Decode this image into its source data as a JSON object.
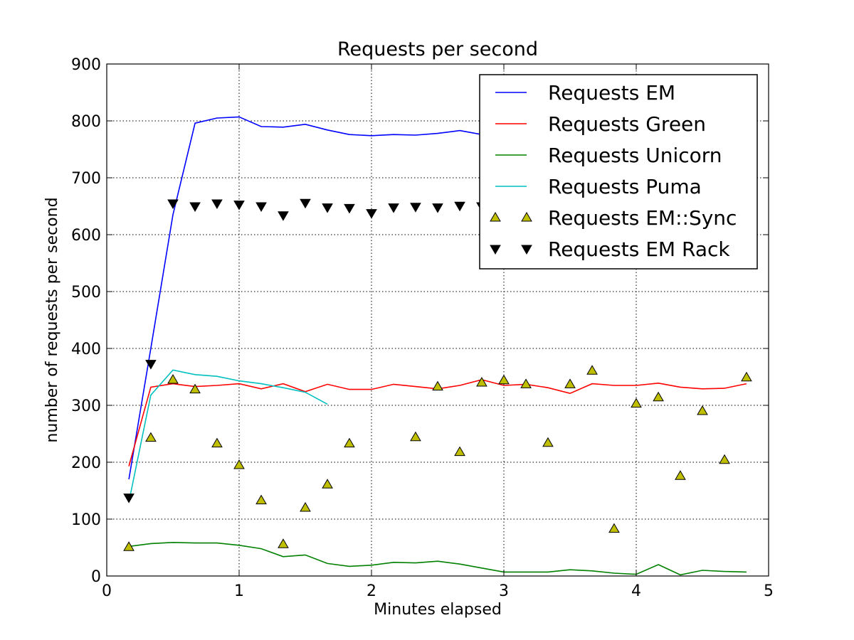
{
  "chart_data": {
    "type": "line",
    "title": "Requests per second",
    "xlabel": "Minutes elapsed",
    "ylabel": "number of requests per second",
    "xlim": [
      0,
      5
    ],
    "ylim": [
      0,
      900
    ],
    "xticks": [
      "0",
      "1",
      "2",
      "3",
      "4",
      "5"
    ],
    "yticks": [
      "0",
      "100",
      "200",
      "300",
      "400",
      "500",
      "600",
      "700",
      "800",
      "900"
    ],
    "grid": true,
    "legend_position": "top-right",
    "series": [
      {
        "name": "Requests EM",
        "style": "line",
        "color": "#0000ff",
        "x": [
          0.167,
          0.333,
          0.5,
          0.667,
          0.833,
          1.0,
          1.167,
          1.333,
          1.5,
          1.667,
          1.833,
          2.0,
          2.167,
          2.333,
          2.5,
          2.667,
          2.833
        ],
        "y": [
          170,
          400,
          635,
          796,
          805,
          807,
          790,
          789,
          794,
          784,
          776,
          774,
          776,
          775,
          778,
          783,
          776
        ]
      },
      {
        "name": "Requests Green",
        "style": "line",
        "color": "#ff0000",
        "x": [
          0.167,
          0.333,
          0.5,
          0.667,
          0.833,
          1.0,
          1.167,
          1.333,
          1.5,
          1.667,
          1.833,
          2.0,
          2.167,
          2.333,
          2.5,
          2.667,
          2.833,
          3.0,
          3.167,
          3.333,
          3.5,
          3.667,
          3.833,
          4.0,
          4.167,
          4.333,
          4.5,
          4.667,
          4.833
        ],
        "y": [
          193,
          332,
          338,
          333,
          335,
          338,
          329,
          338,
          324,
          337,
          328,
          328,
          337,
          333,
          329,
          335,
          345,
          335,
          337,
          331,
          321,
          338,
          335,
          335,
          339,
          332,
          329,
          330,
          338
        ]
      },
      {
        "name": "Requests Unicorn",
        "style": "line",
        "color": "#008000",
        "x": [
          0.167,
          0.333,
          0.5,
          0.667,
          0.833,
          1.0,
          1.167,
          1.333,
          1.5,
          1.667,
          1.833,
          2.0,
          2.167,
          2.333,
          2.5,
          2.667,
          2.833,
          3.0,
          3.167,
          3.333,
          3.5,
          3.667,
          3.833,
          4.0,
          4.167,
          4.333,
          4.5,
          4.667,
          4.833
        ],
        "y": [
          52,
          57,
          59,
          58,
          58,
          54,
          48,
          34,
          37,
          22,
          17,
          19,
          24,
          23,
          26,
          21,
          14,
          7,
          7,
          7,
          11,
          9,
          5,
          3,
          20,
          2,
          10,
          8,
          7
        ]
      },
      {
        "name": "Requests Puma",
        "style": "line",
        "color": "#00bfbf",
        "x": [
          0.167,
          0.333,
          0.5,
          0.667,
          0.833,
          1.0,
          1.167,
          1.333,
          1.5,
          1.667
        ],
        "y": [
          130,
          318,
          362,
          354,
          351,
          343,
          338,
          331,
          323,
          302
        ]
      },
      {
        "name": "Requests EM::Sync",
        "style": "marker-up",
        "color": "#bfbf00",
        "x": [
          0.167,
          0.333,
          0.5,
          0.667,
          0.833,
          1.0,
          1.167,
          1.333,
          1.5,
          1.667,
          1.833,
          2.333,
          2.5,
          2.667,
          2.833,
          3.0,
          3.167,
          3.333,
          3.5,
          3.667,
          3.833,
          4.0,
          4.167,
          4.333,
          4.5,
          4.667,
          4.833
        ],
        "y": [
          51,
          243,
          345,
          328,
          233,
          195,
          133,
          56,
          120,
          161,
          233,
          244,
          333,
          218,
          340,
          344,
          337,
          234,
          337,
          361,
          83,
          303,
          314,
          176,
          290,
          204,
          349
        ]
      },
      {
        "name": "Requests EM Rack",
        "style": "marker-down",
        "color": "#000000",
        "x": [
          0.167,
          0.333,
          0.5,
          0.667,
          0.833,
          1.0,
          1.167,
          1.333,
          1.5,
          1.667,
          1.833,
          2.0,
          2.167,
          2.333,
          2.5,
          2.667,
          2.833
        ],
        "y": [
          138,
          373,
          655,
          650,
          655,
          653,
          650,
          634,
          656,
          648,
          647,
          638,
          648,
          649,
          648,
          651,
          650
        ]
      }
    ]
  }
}
